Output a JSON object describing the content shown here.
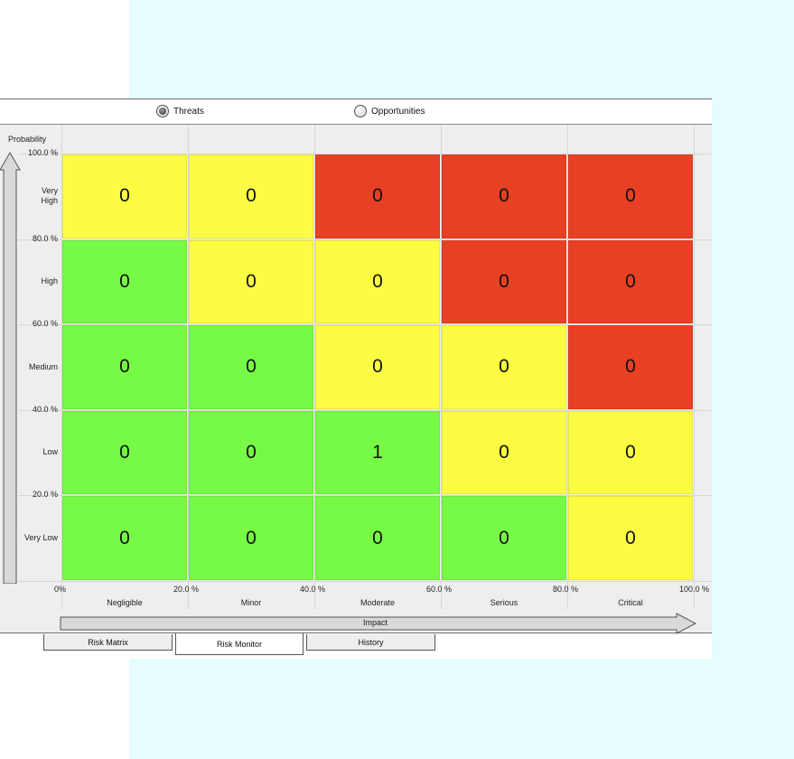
{
  "filter": {
    "threats_label": "Threats",
    "threats_selected": true,
    "opportunities_label": "Opportunities",
    "opportunities_selected": false
  },
  "chart_data": {
    "type": "heatmap",
    "ylabel": "Probability",
    "xlabel": "Impact",
    "y_ticks": [
      "100.0 %",
      "80.0 %",
      "60.0 %",
      "40.0 %",
      "20.0 %"
    ],
    "x_ticks": [
      "0%",
      "20.0 %",
      "40.0 %",
      "60.0 %",
      "80.0 %",
      "100.0 %"
    ],
    "rows": [
      "Very High",
      "High",
      "Medium",
      "Low",
      "Very Low"
    ],
    "columns": [
      "Negligible",
      "Minor",
      "Moderate",
      "Serious",
      "Critical"
    ],
    "values": [
      [
        0,
        0,
        0,
        0,
        0
      ],
      [
        0,
        0,
        0,
        0,
        0
      ],
      [
        0,
        0,
        0,
        0,
        0
      ],
      [
        0,
        0,
        1,
        0,
        0
      ],
      [
        0,
        0,
        0,
        0,
        0
      ]
    ],
    "colors": [
      [
        "yellow",
        "yellow",
        "red",
        "red",
        "red"
      ],
      [
        "green",
        "yellow",
        "yellow",
        "red",
        "red"
      ],
      [
        "green",
        "green",
        "yellow",
        "yellow",
        "red"
      ],
      [
        "green",
        "green",
        "green",
        "yellow",
        "yellow"
      ],
      [
        "green",
        "green",
        "green",
        "green",
        "yellow"
      ]
    ],
    "palette": {
      "green": "#77fa45",
      "yellow": "#fcfd43",
      "red": "#e74024"
    }
  },
  "tabs": [
    {
      "label": "Risk Matrix",
      "active": false
    },
    {
      "label": "Risk Monitor",
      "active": true
    },
    {
      "label": "History",
      "active": false
    }
  ]
}
